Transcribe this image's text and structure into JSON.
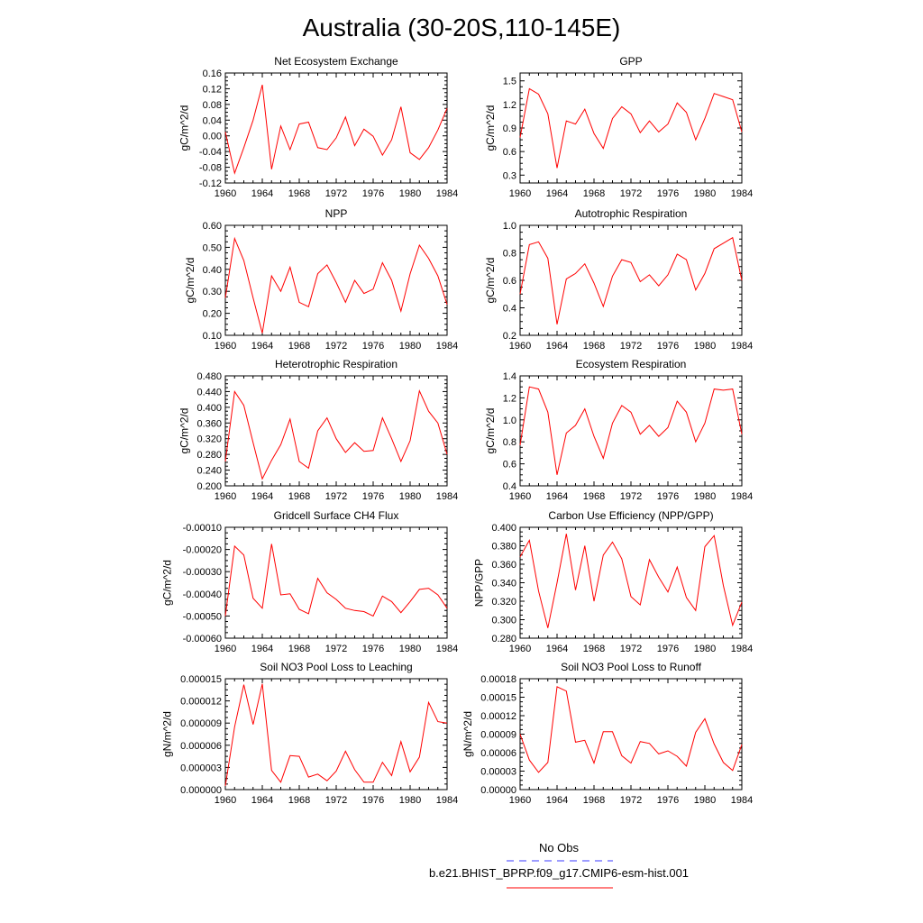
{
  "figure": {
    "title": "Australia (30-20S,110-145E)",
    "legend": {
      "items": [
        {
          "label": "No Obs",
          "color": "#3a3aff",
          "style": "dashed"
        },
        {
          "label": "b.e21.BHIST_BPRP.f09_g17.CMIP6-esm-hist.001",
          "color": "#ff0000",
          "style": "solid"
        }
      ]
    }
  },
  "colors": {
    "series": "#ff0000",
    "axis": "#000000",
    "obs": "#3a3aff"
  },
  "chart_data": [
    {
      "type": "line",
      "title": "Net Ecosystem Exchange",
      "ylabel": "gC/m^2/d",
      "xlim": [
        1960,
        1984
      ],
      "ylim": [
        -0.12,
        0.16
      ],
      "xticks": [
        "1960",
        "1964",
        "1968",
        "1972",
        "1976",
        "1980",
        "1984"
      ],
      "yticks": [
        "-0.12",
        "-0.08",
        "-0.04",
        "0.00",
        "0.04",
        "0.08",
        "0.12",
        "0.16"
      ],
      "x": [
        1960,
        1961,
        1962,
        1963,
        1964,
        1965,
        1966,
        1967,
        1968,
        1969,
        1970,
        1971,
        1972,
        1973,
        1974,
        1975,
        1976,
        1977,
        1978,
        1979,
        1980,
        1981,
        1982,
        1983,
        1984
      ],
      "series": [
        {
          "values": [
            0.01,
            -0.095,
            -0.03,
            0.04,
            0.13,
            -0.085,
            0.025,
            -0.035,
            0.03,
            0.035,
            -0.03,
            -0.035,
            -0.005,
            0.048,
            -0.025,
            0.017,
            -0.001,
            -0.049,
            -0.01,
            0.074,
            -0.043,
            -0.06,
            -0.03,
            0.015,
            0.07
          ]
        }
      ]
    },
    {
      "type": "line",
      "title": "GPP",
      "ylabel": "gC/m^2/d",
      "xlim": [
        1960,
        1984
      ],
      "ylim": [
        0.2,
        1.6
      ],
      "xticks": [
        "1960",
        "1964",
        "1968",
        "1972",
        "1976",
        "1980",
        "1984"
      ],
      "yticks": [
        "0.3",
        "0.6",
        "0.9",
        "1.2",
        "1.5"
      ],
      "x": [
        1960,
        1961,
        1962,
        1963,
        1964,
        1965,
        1966,
        1967,
        1968,
        1969,
        1970,
        1971,
        1972,
        1973,
        1974,
        1975,
        1976,
        1977,
        1978,
        1979,
        1980,
        1981,
        1982,
        1983,
        1984
      ],
      "series": [
        {
          "values": [
            0.78,
            1.4,
            1.33,
            1.08,
            0.39,
            0.99,
            0.95,
            1.14,
            0.83,
            0.64,
            1.02,
            1.17,
            1.08,
            0.84,
            0.99,
            0.85,
            0.95,
            1.22,
            1.1,
            0.75,
            1.02,
            1.34,
            1.3,
            1.26,
            0.85
          ]
        }
      ]
    },
    {
      "type": "line",
      "title": "NPP",
      "ylabel": "gC/m^2/d",
      "xlim": [
        1960,
        1984
      ],
      "ylim": [
        0.1,
        0.6
      ],
      "xticks": [
        "1960",
        "1964",
        "1968",
        "1972",
        "1976",
        "1980",
        "1984"
      ],
      "yticks": [
        "0.10",
        "0.20",
        "0.30",
        "0.40",
        "0.50",
        "0.60"
      ],
      "x": [
        1960,
        1961,
        1962,
        1963,
        1964,
        1965,
        1966,
        1967,
        1968,
        1969,
        1970,
        1971,
        1972,
        1973,
        1974,
        1975,
        1976,
        1977,
        1978,
        1979,
        1980,
        1981,
        1982,
        1983,
        1984
      ],
      "series": [
        {
          "values": [
            0.27,
            0.54,
            0.44,
            0.27,
            0.11,
            0.37,
            0.3,
            0.41,
            0.25,
            0.23,
            0.38,
            0.42,
            0.34,
            0.25,
            0.35,
            0.29,
            0.31,
            0.43,
            0.35,
            0.21,
            0.38,
            0.51,
            0.45,
            0.37,
            0.24
          ]
        }
      ]
    },
    {
      "type": "line",
      "title": "Autotrophic Respiration",
      "ylabel": "gC/m^2/d",
      "xlim": [
        1960,
        1984
      ],
      "ylim": [
        0.2,
        1.0
      ],
      "xticks": [
        "1960",
        "1964",
        "1968",
        "1972",
        "1976",
        "1980",
        "1984"
      ],
      "yticks": [
        "0.2",
        "0.4",
        "0.6",
        "0.8",
        "1.0"
      ],
      "x": [
        1960,
        1961,
        1962,
        1963,
        1964,
        1965,
        1966,
        1967,
        1968,
        1969,
        1970,
        1971,
        1972,
        1973,
        1974,
        1975,
        1976,
        1977,
        1978,
        1979,
        1980,
        1981,
        1982,
        1983,
        1984
      ],
      "series": [
        {
          "values": [
            0.5,
            0.86,
            0.88,
            0.76,
            0.28,
            0.61,
            0.65,
            0.72,
            0.58,
            0.41,
            0.63,
            0.75,
            0.73,
            0.59,
            0.64,
            0.56,
            0.64,
            0.79,
            0.75,
            0.53,
            0.65,
            0.83,
            0.87,
            0.91,
            0.6
          ]
        }
      ]
    },
    {
      "type": "line",
      "title": "Heterotrophic Respiration",
      "ylabel": "gC/m^2/d",
      "xlim": [
        1960,
        1984
      ],
      "ylim": [
        0.2,
        0.48
      ],
      "xticks": [
        "1960",
        "1964",
        "1968",
        "1972",
        "1976",
        "1980",
        "1984"
      ],
      "yticks": [
        "0.200",
        "0.240",
        "0.280",
        "0.320",
        "0.360",
        "0.400",
        "0.440",
        "0.480"
      ],
      "x": [
        1960,
        1961,
        1962,
        1963,
        1964,
        1965,
        1966,
        1967,
        1968,
        1969,
        1970,
        1971,
        1972,
        1973,
        1974,
        1975,
        1976,
        1977,
        1978,
        1979,
        1980,
        1981,
        1982,
        1983,
        1984
      ],
      "series": [
        {
          "values": [
            0.262,
            0.44,
            0.405,
            0.31,
            0.218,
            0.265,
            0.305,
            0.37,
            0.262,
            0.245,
            0.34,
            0.373,
            0.32,
            0.285,
            0.31,
            0.288,
            0.29,
            0.373,
            0.32,
            0.262,
            0.315,
            0.442,
            0.39,
            0.36,
            0.28
          ]
        }
      ]
    },
    {
      "type": "line",
      "title": "Ecosystem Respiration",
      "ylabel": "gC/m^2/d",
      "xlim": [
        1960,
        1984
      ],
      "ylim": [
        0.4,
        1.4
      ],
      "xticks": [
        "1960",
        "1964",
        "1968",
        "1972",
        "1976",
        "1980",
        "1984"
      ],
      "yticks": [
        "0.4",
        "0.6",
        "0.8",
        "1.0",
        "1.2",
        "1.4"
      ],
      "x": [
        1960,
        1961,
        1962,
        1963,
        1964,
        1965,
        1966,
        1967,
        1968,
        1969,
        1970,
        1971,
        1972,
        1973,
        1974,
        1975,
        1976,
        1977,
        1978,
        1979,
        1980,
        1981,
        1982,
        1983,
        1984
      ],
      "series": [
        {
          "values": [
            0.77,
            1.3,
            1.28,
            1.07,
            0.5,
            0.88,
            0.95,
            1.1,
            0.85,
            0.65,
            0.97,
            1.13,
            1.07,
            0.87,
            0.95,
            0.85,
            0.93,
            1.17,
            1.07,
            0.8,
            0.97,
            1.28,
            1.27,
            1.28,
            0.87
          ]
        }
      ]
    },
    {
      "type": "line",
      "title": "Gridcell Surface CH4 Flux",
      "ylabel": "gC/m^2/d",
      "xlim": [
        1960,
        1984
      ],
      "ylim": [
        -0.0006,
        -0.0001
      ],
      "xticks": [
        "1960",
        "1964",
        "1968",
        "1972",
        "1976",
        "1980",
        "1984"
      ],
      "yticks": [
        "-0.00060",
        "-0.00050",
        "-0.00040",
        "-0.00030",
        "-0.00020",
        "-0.00010"
      ],
      "x": [
        1960,
        1961,
        1962,
        1963,
        1964,
        1965,
        1966,
        1967,
        1968,
        1969,
        1970,
        1971,
        1972,
        1973,
        1974,
        1975,
        1976,
        1977,
        1978,
        1979,
        1980,
        1981,
        1982,
        1983,
        1984
      ],
      "series": [
        {
          "values": [
            -0.0005,
            -0.000185,
            -0.000225,
            -0.00042,
            -0.000465,
            -0.000175,
            -0.000405,
            -0.0004,
            -0.00047,
            -0.00049,
            -0.00033,
            -0.000395,
            -0.000425,
            -0.000465,
            -0.000475,
            -0.00048,
            -0.0005,
            -0.00041,
            -0.000435,
            -0.000485,
            -0.000435,
            -0.00038,
            -0.000375,
            -0.000405,
            -0.000465
          ]
        }
      ]
    },
    {
      "type": "line",
      "title": "Carbon Use Efficiency (NPP/GPP)",
      "ylabel": "NPP/GPP",
      "xlim": [
        1960,
        1984
      ],
      "ylim": [
        0.28,
        0.4
      ],
      "xticks": [
        "1960",
        "1964",
        "1968",
        "1972",
        "1976",
        "1980",
        "1984"
      ],
      "yticks": [
        "0.280",
        "0.300",
        "0.320",
        "0.340",
        "0.360",
        "0.380",
        "0.400"
      ],
      "x": [
        1960,
        1961,
        1962,
        1963,
        1964,
        1965,
        1966,
        1967,
        1968,
        1969,
        1970,
        1971,
        1972,
        1973,
        1974,
        1975,
        1976,
        1977,
        1978,
        1979,
        1980,
        1981,
        1982,
        1983,
        1984
      ],
      "series": [
        {
          "values": [
            0.368,
            0.386,
            0.331,
            0.291,
            0.34,
            0.393,
            0.332,
            0.38,
            0.32,
            0.37,
            0.384,
            0.366,
            0.325,
            0.316,
            0.365,
            0.346,
            0.33,
            0.357,
            0.324,
            0.31,
            0.379,
            0.391,
            0.337,
            0.294,
            0.319
          ]
        }
      ]
    },
    {
      "type": "line",
      "title": "Soil NO3 Pool Loss to Leaching",
      "ylabel": "gN/m^2/d",
      "xlim": [
        1960,
        1984
      ],
      "ylim": [
        0,
        1.5e-05
      ],
      "xticks": [
        "1960",
        "1964",
        "1968",
        "1972",
        "1976",
        "1980",
        "1984"
      ],
      "yticks": [
        "0.000000",
        "0.000003",
        "0.000006",
        "0.000009",
        "0.000012",
        "0.000015"
      ],
      "x": [
        1960,
        1961,
        1962,
        1963,
        1964,
        1965,
        1966,
        1967,
        1968,
        1969,
        1970,
        1971,
        1972,
        1973,
        1974,
        1975,
        1976,
        1977,
        1978,
        1979,
        1980,
        1981,
        1982,
        1983,
        1984
      ],
      "series": [
        {
          "values": [
            5e-07,
            8.5e-06,
            1.42e-05,
            8.8e-06,
            1.43e-05,
            2.6e-06,
            1e-06,
            4.6e-06,
            4.5e-06,
            1.7e-06,
            2.1e-06,
            1.2e-06,
            2.5e-06,
            5.2e-06,
            2.7e-06,
            1e-06,
            1e-06,
            3.7e-06,
            1.9e-06,
            6.5e-06,
            2.4e-06,
            4.4e-06,
            1.18e-05,
            9.2e-06,
            9e-06
          ]
        }
      ]
    },
    {
      "type": "line",
      "title": "Soil NO3 Pool Loss to Runoff",
      "ylabel": "gN/m^2/d",
      "xlim": [
        1960,
        1984
      ],
      "ylim": [
        0,
        0.00018
      ],
      "xticks": [
        "1960",
        "1964",
        "1968",
        "1972",
        "1976",
        "1980",
        "1984"
      ],
      "yticks": [
        "0.00000",
        "0.00003",
        "0.00006",
        "0.00009",
        "0.00012",
        "0.00015",
        "0.00018"
      ],
      "x": [
        1960,
        1961,
        1962,
        1963,
        1964,
        1965,
        1966,
        1967,
        1968,
        1969,
        1970,
        1971,
        1972,
        1973,
        1974,
        1975,
        1976,
        1977,
        1978,
        1979,
        1980,
        1981,
        1982,
        1983,
        1984
      ],
      "series": [
        {
          "values": [
            9e-05,
            4.8e-05,
            2.8e-05,
            4.4e-05,
            0.000167,
            0.00016,
            7.7e-05,
            8e-05,
            4.3e-05,
            9.4e-05,
            9.4e-05,
            5.5e-05,
            4.3e-05,
            7.8e-05,
            7.5e-05,
            5.8e-05,
            6.3e-05,
            5.4e-05,
            3.8e-05,
            9.3e-05,
            0.000115,
            7.4e-05,
            4.4e-05,
            3.1e-05,
            7.3e-05
          ]
        }
      ]
    }
  ]
}
